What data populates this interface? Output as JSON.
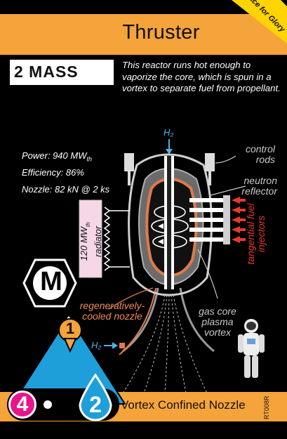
{
  "card": {
    "title": "Thruster",
    "corner_label": "Race for Glory",
    "mass": "2 MASS",
    "description": "This reactor runs hot enough to vaporize the core, which is spun in a vortex to separate fuel from propellant.",
    "stats": {
      "power_prefix": "Power: 940 MW",
      "power_sub": "th",
      "efficiency": "Efficiency: 86%",
      "nozzle": "Nozzle: 82 kN @ 2 ks"
    },
    "radiator": {
      "line1": "120 MW",
      "sub": "th",
      "line2": "radiator"
    },
    "labels": {
      "h2_top": "H₂",
      "control_rods": "control rods",
      "neutron_reflector": "neutron reflector",
      "tangential_fuel_injectors": "tangential fuel injectors",
      "regeneratively_cooled_nozzle": "regeneratively-cooled nozzle",
      "h2_side": "H₂",
      "gas_core_plasma_vortex": "gas core plasma vortex"
    },
    "badge_letter": "M",
    "triangle_number": "1",
    "circle_left_number": "4",
    "circle_right_number": "2",
    "footer_name": "Vortex Confined Nozzle",
    "code": "RT008R"
  },
  "colors": {
    "orange": "#f5a33b",
    "yellow": "#ffd400",
    "blue": "#1e9fd9",
    "magenta": "#e9148b",
    "copper": "#e07a4a",
    "red_arrows": "#e63a2b"
  }
}
